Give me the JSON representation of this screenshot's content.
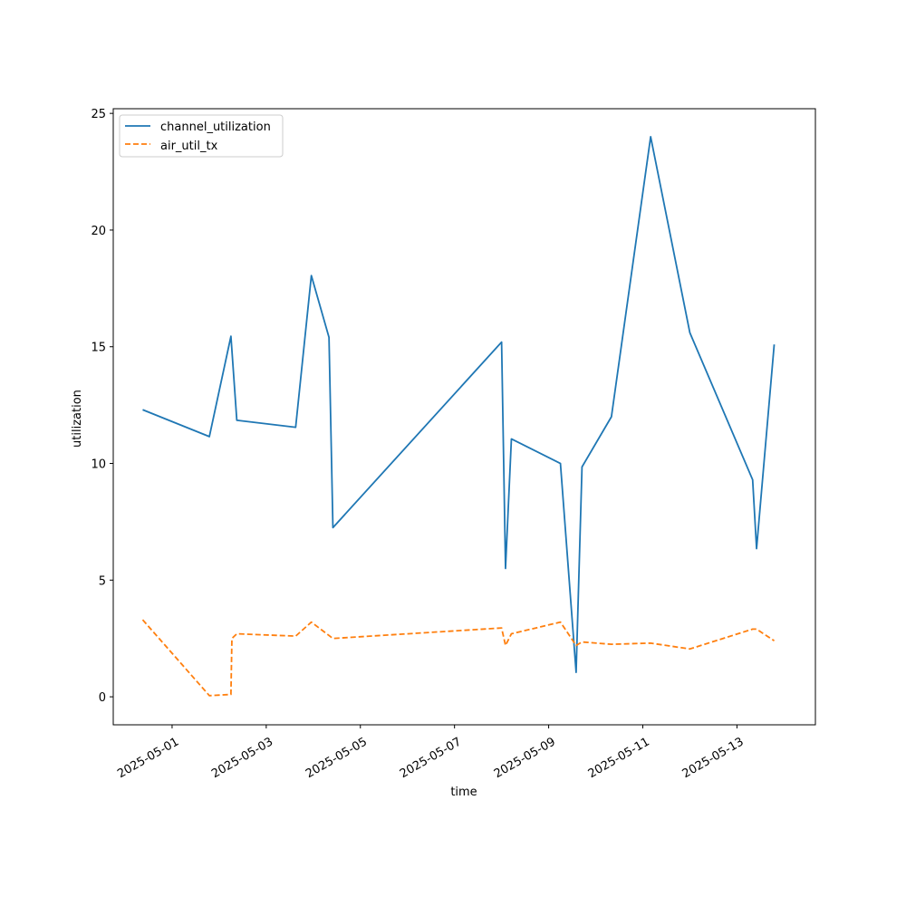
{
  "chart_data": {
    "type": "line",
    "title": "",
    "xlabel": "time",
    "ylabel": "utilization",
    "x_axis": "date",
    "xlim": [
      "2025-04-29T18:00",
      "2025-05-14T16:00"
    ],
    "ylim": [
      -1.2,
      25.2
    ],
    "xtick_labels": [
      "2025-05-01",
      "2025-05-03",
      "2025-05-05",
      "2025-05-07",
      "2025-05-09",
      "2025-05-11",
      "2025-05-13"
    ],
    "ytick_values": [
      0,
      5,
      10,
      15,
      20,
      25
    ],
    "grid": false,
    "legend_position": "upper-left",
    "series": [
      {
        "name": "channel_utilization",
        "color": "#1f77b4",
        "style": "solid",
        "points": [
          [
            "2025-04-30T09:00",
            12.3
          ],
          [
            "2025-05-01T19:00",
            11.15
          ],
          [
            "2025-05-02T06:00",
            15.45
          ],
          [
            "2025-05-02T09:00",
            11.85
          ],
          [
            "2025-05-03T15:00",
            11.55
          ],
          [
            "2025-05-03T23:00",
            18.05
          ],
          [
            "2025-05-04T08:00",
            15.4
          ],
          [
            "2025-05-04T10:00",
            7.25
          ],
          [
            "2025-05-08T00:00",
            15.2
          ],
          [
            "2025-05-08T02:00",
            5.5
          ],
          [
            "2025-05-08T05:00",
            11.05
          ],
          [
            "2025-05-09T06:00",
            10.0
          ],
          [
            "2025-05-09T14:00",
            1.05
          ],
          [
            "2025-05-09T17:00",
            9.85
          ],
          [
            "2025-05-10T08:00",
            12.0
          ],
          [
            "2025-05-11T04:00",
            24.0
          ],
          [
            "2025-05-12T00:00",
            15.6
          ],
          [
            "2025-05-13T08:00",
            9.3
          ],
          [
            "2025-05-13T10:00",
            6.35
          ],
          [
            "2025-05-13T19:00",
            15.1
          ]
        ]
      },
      {
        "name": "air_util_tx",
        "color": "#ff7f0e",
        "style": "dashed",
        "points": [
          [
            "2025-04-30T09:00",
            3.3
          ],
          [
            "2025-05-01T19:00",
            0.05
          ],
          [
            "2025-05-02T06:00",
            0.1
          ],
          [
            "2025-05-02T06:30",
            2.5
          ],
          [
            "2025-05-02T09:00",
            2.7
          ],
          [
            "2025-05-03T15:00",
            2.6
          ],
          [
            "2025-05-03T23:00",
            3.2
          ],
          [
            "2025-05-04T10:00",
            2.5
          ],
          [
            "2025-05-08T00:00",
            2.95
          ],
          [
            "2025-05-08T02:00",
            2.2
          ],
          [
            "2025-05-08T05:00",
            2.7
          ],
          [
            "2025-05-09T06:00",
            3.2
          ],
          [
            "2025-05-09T14:00",
            2.2
          ],
          [
            "2025-05-09T17:00",
            2.35
          ],
          [
            "2025-05-10T08:00",
            2.25
          ],
          [
            "2025-05-11T04:00",
            2.3
          ],
          [
            "2025-05-12T00:00",
            2.05
          ],
          [
            "2025-05-13T08:00",
            2.9
          ],
          [
            "2025-05-13T10:00",
            2.9
          ],
          [
            "2025-05-13T19:00",
            2.4
          ]
        ]
      }
    ]
  }
}
